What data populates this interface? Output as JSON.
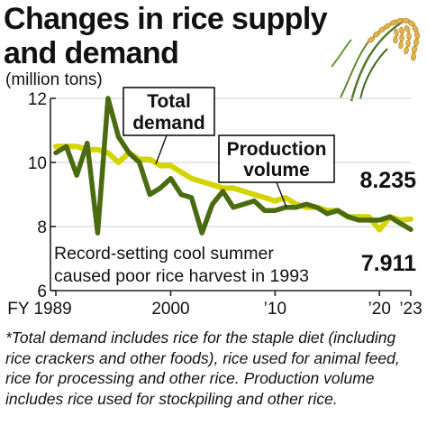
{
  "title": "Changes in rice supply and demand",
  "unit": "(million tons)",
  "footnote": "*Total demand includes rice for the staple diet (including rice crackers and other foods), rice used for animal feed, rice for processing and other rice. Production volume includes rice used for stockpiling and other rice.",
  "colors": {
    "demand": "#d4d400",
    "production": "#4a6b10",
    "axis": "#222222",
    "grid": "#cccccc"
  },
  "chart_data": {
    "type": "line",
    "x": [
      1989,
      1990,
      1991,
      1992,
      1993,
      1994,
      1995,
      1996,
      1997,
      1998,
      1999,
      2000,
      2001,
      2002,
      2003,
      2004,
      2005,
      2006,
      2007,
      2008,
      2009,
      2010,
      2011,
      2012,
      2013,
      2014,
      2015,
      2016,
      2017,
      2018,
      2019,
      2020,
      2021,
      2022,
      2023
    ],
    "ylim": [
      6,
      12
    ],
    "yticks": [
      6,
      8,
      10,
      12
    ],
    "xticks": [
      {
        "value": 1989,
        "label": "FY 1989"
      },
      {
        "value": 2000,
        "label": "2000"
      },
      {
        "value": 2010,
        "label": "’10"
      },
      {
        "value": 2020,
        "label": "’20"
      },
      {
        "value": 2023,
        "label": "’23"
      }
    ],
    "series": [
      {
        "key": "demand",
        "name": "Total demand",
        "values": [
          10.5,
          10.5,
          10.5,
          10.4,
          10.4,
          10.3,
          10.0,
          10.3,
          10.1,
          10.1,
          9.9,
          9.9,
          9.7,
          9.5,
          9.4,
          9.3,
          9.2,
          9.2,
          9.1,
          9.0,
          8.9,
          8.8,
          8.9,
          8.7,
          8.6,
          8.6,
          8.5,
          8.5,
          8.3,
          8.3,
          8.3,
          7.9,
          8.3,
          8.2,
          8.235
        ]
      },
      {
        "key": "production",
        "name": "Production volume",
        "values": [
          10.3,
          10.5,
          9.6,
          10.6,
          7.8,
          12.0,
          10.8,
          10.3,
          10.0,
          9.0,
          9.2,
          9.5,
          9.0,
          8.9,
          7.8,
          8.7,
          9.1,
          8.6,
          8.7,
          8.8,
          8.5,
          8.5,
          8.6,
          8.6,
          8.7,
          8.6,
          8.4,
          8.5,
          8.3,
          8.2,
          8.2,
          8.2,
          8.3,
          8.1,
          7.911
        ]
      }
    ],
    "callouts": {
      "demand_label": "Total demand",
      "production_label": "Production volume",
      "demand_end": "8.235",
      "production_end": "7.911",
      "annotation": "Record-setting cool summer caused poor rice harvest in 1993"
    }
  }
}
